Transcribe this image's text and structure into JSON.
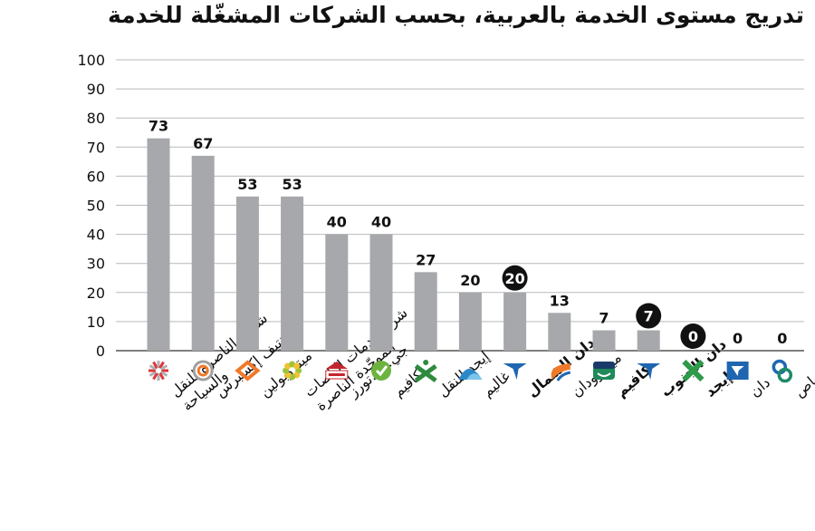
{
  "chart_data": {
    "type": "bar",
    "title": "تدريج مستوى الخدمة بالعربية، بحسب الشركات المشغّلة للخدمة",
    "xlabel": "",
    "ylabel": "",
    "ylim": [
      0,
      100
    ],
    "yticks": [
      0,
      10,
      20,
      30,
      40,
      50,
      60,
      70,
      80,
      90,
      100
    ],
    "grid": true,
    "categories": [
      {
        "lines": [
          "شركة الناصرة للنقل",
          "والسياحة"
        ],
        "bold": false,
        "icon": "sunburst-logo-icon",
        "color": "#e0343a"
      },
      {
        "lines": [
          "نتيف إكسبرس"
        ],
        "bold": false,
        "icon": "ring-logo-icon",
        "color": "#f07a2a"
      },
      {
        "lines": [
          "ميتروبولين"
        ],
        "bold": false,
        "icon": "arrows-logo-icon",
        "color": "#f07a2a"
      },
      {
        "lines": [
          "شركةخدمات الباصات",
          "الموحّدة الناصرة"
        ],
        "bold": false,
        "icon": "flower-logo-icon",
        "color": "#9cc53b"
      },
      {
        "lines": [
          "جي.بي.تورز"
        ],
        "bold": false,
        "icon": "gbt-logo-icon",
        "color": "#c4262e"
      },
      {
        "lines": [
          "كافيم"
        ],
        "bold": false,
        "icon": "circle-check-logo-icon",
        "color": "#6db33f"
      },
      {
        "lines": [
          "إيجد للنقل"
        ],
        "bold": false,
        "icon": "x-figure-logo-icon",
        "color": "#2e8b3e"
      },
      {
        "lines": [
          "غاليم"
        ],
        "bold": false,
        "icon": "wave-logo-icon",
        "color": "#2b88c8"
      },
      {
        "lines": [
          "دان الشمال"
        ],
        "bold": true,
        "icon": "dan-bird-logo-icon",
        "color": "#1f66b0"
      },
      {
        "lines": [
          "ميتروودان"
        ],
        "bold": false,
        "icon": "metrodan-logo-icon",
        "color": "#f07a2a"
      },
      {
        "lines": [
          "كافيم"
        ],
        "bold": true,
        "icon": "kavim-logo-icon",
        "color": "#1e8a5a"
      },
      {
        "lines": [
          "دان الجنوب"
        ],
        "bold": true,
        "icon": "dan-bird-logo-icon",
        "color": "#1f66b0"
      },
      {
        "lines": [
          "إيجد"
        ],
        "bold": true,
        "icon": "egged-x-logo-icon",
        "color": "#2e9a4a"
      },
      {
        "lines": [
          "دان"
        ],
        "bold": false,
        "icon": "dan-box-logo-icon",
        "color": "#1f66b0"
      },
      {
        "lines": [
          "سوبرباص"
        ],
        "bold": false,
        "icon": "chain-logo-icon",
        "color": "#1f8a6a"
      }
    ],
    "values": [
      73,
      67,
      53,
      53,
      40,
      40,
      27,
      20,
      20,
      13,
      7,
      7,
      0,
      0,
      0
    ],
    "highlighted": [
      false,
      false,
      false,
      false,
      false,
      false,
      false,
      false,
      true,
      false,
      false,
      true,
      true,
      false,
      false
    ],
    "bar_color": "#a7a8ab",
    "highlight_badge_color": "#111111"
  }
}
